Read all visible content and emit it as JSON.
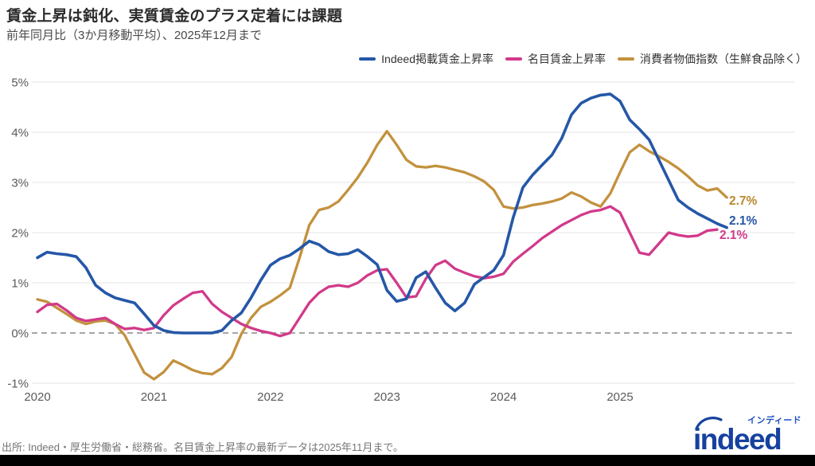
{
  "header": {
    "title": "賃金上昇は鈍化、実質賃金のプラス定着には課題",
    "subtitle": "前年同月比（3か月移動平均）、2025年12月まで"
  },
  "legend": [
    {
      "label": "Indeed掲載賃金上昇率",
      "color": "#2557a7"
    },
    {
      "label": "名目賃金上昇率",
      "color": "#d13a8a"
    },
    {
      "label": "消費者物価指数（生鮮食品除く）",
      "color": "#c3913e"
    }
  ],
  "chart_data": {
    "type": "line",
    "x_start": "2020-01",
    "x_frequency": "monthly",
    "x_tick_labels": [
      "2020",
      "2021",
      "2022",
      "2023",
      "2024",
      "2025"
    ],
    "y_ticks": [
      5,
      4,
      3,
      2,
      1,
      0,
      -1
    ],
    "y_tick_labels": [
      "5%",
      "4%",
      "3%",
      "2%",
      "1%",
      "0%",
      "-1%"
    ],
    "ylim": [
      -1.4,
      5.3
    ],
    "grid": "horizontal-only",
    "zero_line": "dashed",
    "legend_position": "top-right",
    "series": [
      {
        "name": "Indeed掲載賃金上昇率",
        "color": "#2557a7",
        "values": [
          1.5,
          1.61,
          1.58,
          1.56,
          1.52,
          1.3,
          0.95,
          0.8,
          0.7,
          0.65,
          0.6,
          0.38,
          0.15,
          0.05,
          0.01,
          0.0,
          0.0,
          0.0,
          0.0,
          0.05,
          0.25,
          0.4,
          0.7,
          1.05,
          1.35,
          1.48,
          1.55,
          1.68,
          1.83,
          1.76,
          1.62,
          1.56,
          1.58,
          1.66,
          1.52,
          1.36,
          0.85,
          0.63,
          0.68,
          1.1,
          1.22,
          0.9,
          0.6,
          0.44,
          0.6,
          0.97,
          1.11,
          1.25,
          1.55,
          2.3,
          2.9,
          3.15,
          3.35,
          3.55,
          3.88,
          4.35,
          4.58,
          4.68,
          4.74,
          4.76,
          4.62,
          4.25,
          4.06,
          3.85,
          3.45,
          3.05,
          2.65,
          2.5,
          2.38,
          2.28,
          2.18,
          2.1
        ]
      },
      {
        "name": "名目賃金上昇率",
        "color": "#d13a8a",
        "values": [
          0.42,
          0.56,
          0.58,
          0.45,
          0.3,
          0.24,
          0.27,
          0.3,
          0.18,
          0.08,
          0.1,
          0.06,
          0.1,
          0.35,
          0.55,
          0.68,
          0.8,
          0.83,
          0.58,
          0.42,
          0.3,
          0.18,
          0.1,
          0.04,
          0.0,
          -0.06,
          0.0,
          0.3,
          0.6,
          0.8,
          0.92,
          0.95,
          0.92,
          1.0,
          1.15,
          1.25,
          1.27,
          1.0,
          0.71,
          0.73,
          1.08,
          1.35,
          1.44,
          1.28,
          1.2,
          1.13,
          1.09,
          1.12,
          1.18,
          1.42,
          1.58,
          1.73,
          1.89,
          2.02,
          2.15,
          2.25,
          2.35,
          2.42,
          2.45,
          2.52,
          2.4,
          2.0,
          1.6,
          1.56,
          1.78,
          2.0,
          1.95,
          1.92,
          1.94,
          2.04,
          2.06
        ]
      },
      {
        "name": "消費者物価指数（生鮮食品除く）",
        "color": "#c3913e",
        "values": [
          0.67,
          0.62,
          0.5,
          0.38,
          0.25,
          0.18,
          0.23,
          0.25,
          0.18,
          -0.05,
          -0.42,
          -0.79,
          -0.92,
          -0.78,
          -0.55,
          -0.64,
          -0.74,
          -0.8,
          -0.82,
          -0.7,
          -0.48,
          -0.02,
          0.3,
          0.52,
          0.62,
          0.75,
          0.9,
          1.5,
          2.15,
          2.45,
          2.5,
          2.62,
          2.85,
          3.1,
          3.4,
          3.75,
          4.02,
          3.75,
          3.45,
          3.32,
          3.3,
          3.33,
          3.3,
          3.25,
          3.2,
          3.12,
          3.02,
          2.85,
          2.52,
          2.48,
          2.5,
          2.55,
          2.58,
          2.62,
          2.68,
          2.8,
          2.72,
          2.6,
          2.52,
          2.78,
          3.2,
          3.6,
          3.75,
          3.62,
          3.52,
          3.41,
          3.28,
          3.12,
          2.94,
          2.84,
          2.88,
          2.7
        ]
      }
    ],
    "end_labels": [
      {
        "text": "2.7%",
        "color": "#b9882f"
      },
      {
        "text": "2.1%",
        "color": "#2557a7"
      },
      {
        "text": "2.1%",
        "color": "#d13a8a"
      }
    ]
  },
  "footer": {
    "source": "出所: Indeed・厚生労働省・総務省。名目賃金上昇率の最新データは2025年11月まで。"
  },
  "logo": {
    "wordmark": "indeed",
    "katakana": "インディード",
    "color": "#16419f"
  }
}
